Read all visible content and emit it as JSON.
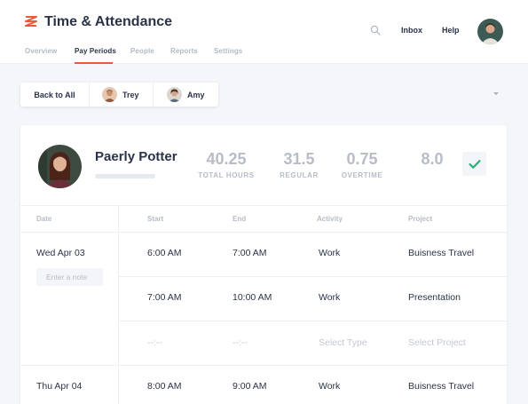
{
  "app": {
    "title": "Time & Attendance",
    "brand_color": "#e85a3a"
  },
  "nav": {
    "tabs": [
      {
        "label": "Overview",
        "active": false
      },
      {
        "label": "Pay Periods",
        "active": true
      },
      {
        "label": "People",
        "active": false
      },
      {
        "label": "Reports",
        "active": false
      },
      {
        "label": "Settings",
        "active": false
      }
    ]
  },
  "header": {
    "inbox_label": "Inbox",
    "help_label": "Help",
    "search_icon": "search-icon",
    "avatar": "user-avatar"
  },
  "filter": {
    "back_label": "Back to All",
    "people": [
      {
        "name": "Trey"
      },
      {
        "name": "Amy"
      }
    ]
  },
  "employee": {
    "name": "Paerly Potter",
    "stats": [
      {
        "value": "40.25",
        "label": "TOTAL HOURS"
      },
      {
        "value": "31.5",
        "label": "REGULAR"
      },
      {
        "value": "0.75",
        "label": "OVERTIME"
      },
      {
        "value": "8.0",
        "label": ""
      }
    ],
    "approve_icon": "check-icon",
    "approve_color": "#2bb37a"
  },
  "table": {
    "columns": [
      "Date",
      "Start",
      "End",
      "Activity",
      "Project"
    ],
    "days": [
      {
        "date": "Wed Apr 03",
        "note_placeholder": "Enter a note",
        "entries": [
          {
            "start": "6:00 AM",
            "end": "7:00 AM",
            "activity": "Work",
            "project": "Buisness Travel"
          },
          {
            "start": "7:00 AM",
            "end": "10:00 AM",
            "activity": "Work",
            "project": "Presentation"
          }
        ],
        "new_entry": {
          "start": "--:--",
          "end": "--:--",
          "activity": "Select Type",
          "project": "Select Project"
        }
      },
      {
        "date": "Thu Apr 04",
        "entries": [
          {
            "start": "8:00 AM",
            "end": "9:00 AM",
            "activity": "Work",
            "project": "Buisness Travel"
          }
        ]
      }
    ]
  }
}
